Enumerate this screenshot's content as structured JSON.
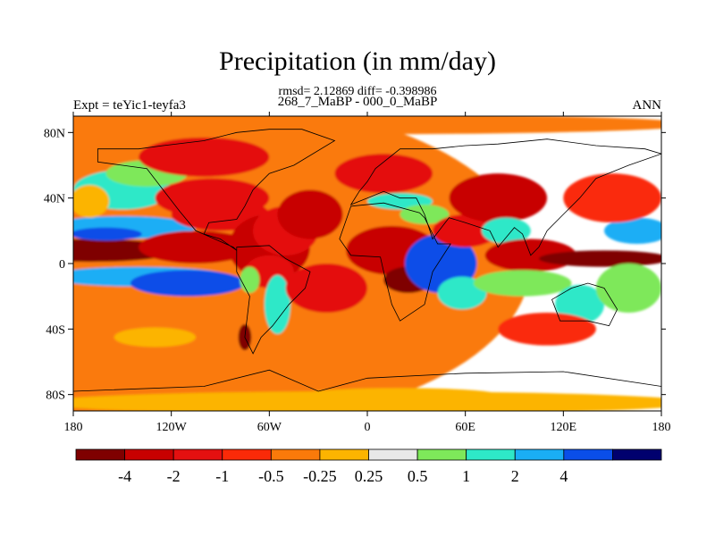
{
  "chart_data": {
    "type": "heatmap",
    "title": "Precipitation (in mm/day)",
    "stats": "rmsd= 2.12869 diff= -0.398986",
    "subtitle": "268_7_MaBP - 000_0_MaBP",
    "left_label": "Expt = teYic1-teyfa3",
    "right_label": "ANN",
    "xlim": [
      -180,
      180
    ],
    "ylim": [
      -90,
      90
    ],
    "x_ticks": [
      {
        "value": -180,
        "label": "180"
      },
      {
        "value": -120,
        "label": "120W"
      },
      {
        "value": -60,
        "label": "60W"
      },
      {
        "value": 0,
        "label": "0"
      },
      {
        "value": 60,
        "label": "60E"
      },
      {
        "value": 120,
        "label": "120E"
      },
      {
        "value": 180,
        "label": "180"
      }
    ],
    "y_ticks": [
      {
        "value": 80,
        "label": "80N"
      },
      {
        "value": 40,
        "label": "40N"
      },
      {
        "value": 0,
        "label": "0"
      },
      {
        "value": -40,
        "label": "40S"
      },
      {
        "value": -80,
        "label": "80S"
      }
    ],
    "levels": [
      {
        "value": -4,
        "label": "-4"
      },
      {
        "value": -2,
        "label": "-2"
      },
      {
        "value": -1,
        "label": "-1"
      },
      {
        "value": -0.5,
        "label": "-0.5"
      },
      {
        "value": -0.25,
        "label": "-0.25"
      },
      {
        "value": 0.25,
        "label": "0.25"
      },
      {
        "value": 0.5,
        "label": "0.5"
      },
      {
        "value": 1,
        "label": "1"
      },
      {
        "value": 2,
        "label": "2"
      },
      {
        "value": 4,
        "label": "4"
      }
    ],
    "colors": [
      "#7f0000",
      "#c80000",
      "#e41010",
      "#fa2a08",
      "#fa7a0a",
      "#fcb400",
      "#e8e8e8",
      "#7ee85a",
      "#2ee8c8",
      "#1aaef5",
      "#0a4ee8",
      "#00006e"
    ],
    "regions": [
      {
        "lon": -100,
        "lat": 0,
        "value": -0.4,
        "rx": 200,
        "ry": 100
      },
      {
        "lon": -170,
        "lat": 8,
        "value": -5,
        "rx": 55,
        "ry": 7
      },
      {
        "lon": -150,
        "lat": 22,
        "value": 2.5,
        "rx": 45,
        "ry": 7
      },
      {
        "lon": -160,
        "lat": 18,
        "value": 4.5,
        "rx": 22,
        "ry": 4
      },
      {
        "lon": -105,
        "lat": 10,
        "value": -2.5,
        "rx": 35,
        "ry": 10
      },
      {
        "lon": -140,
        "lat": -8,
        "value": 2.5,
        "rx": 55,
        "ry": 6
      },
      {
        "lon": -110,
        "lat": -12,
        "value": 5,
        "rx": 35,
        "ry": 8
      },
      {
        "lon": -150,
        "lat": 45,
        "value": 1.2,
        "rx": 30,
        "ry": 12
      },
      {
        "lon": -135,
        "lat": 55,
        "value": 0.7,
        "rx": 25,
        "ry": 8
      },
      {
        "lon": -170,
        "lat": 38,
        "value": 0.1,
        "rx": 12,
        "ry": 10
      },
      {
        "lon": -170,
        "lat": -30,
        "value": -0.3,
        "rx": 25,
        "ry": 12
      },
      {
        "lon": -130,
        "lat": -45,
        "value": 0.1,
        "rx": 25,
        "ry": 6
      },
      {
        "lon": -75,
        "lat": -45,
        "value": -5,
        "rx": 4,
        "ry": 8
      },
      {
        "lon": -95,
        "lat": 40,
        "value": -2,
        "rx": 35,
        "ry": 12
      },
      {
        "lon": -100,
        "lat": 65,
        "value": -1.2,
        "rx": 40,
        "ry": 12
      },
      {
        "lon": -90,
        "lat": 30,
        "value": -1.5,
        "rx": 30,
        "ry": 10
      },
      {
        "lon": -60,
        "lat": 10,
        "value": -3,
        "rx": 25,
        "ry": 20
      },
      {
        "lon": -50,
        "lat": 20,
        "value": -2,
        "rx": 20,
        "ry": 15
      },
      {
        "lon": -60,
        "lat": -5,
        "value": -1.5,
        "rx": 15,
        "ry": 10
      },
      {
        "lon": -55,
        "lat": -25,
        "value": 1.5,
        "rx": 8,
        "ry": 18
      },
      {
        "lon": -72,
        "lat": -10,
        "value": 0.7,
        "rx": 6,
        "ry": 8
      },
      {
        "lon": -35,
        "lat": 30,
        "value": -2.5,
        "rx": 20,
        "ry": 15
      },
      {
        "lon": -25,
        "lat": -15,
        "value": -2,
        "rx": 25,
        "ry": 15
      },
      {
        "lon": 15,
        "lat": 8,
        "value": -3,
        "rx": 28,
        "ry": 15
      },
      {
        "lon": 25,
        "lat": -10,
        "value": -4.5,
        "rx": 15,
        "ry": 8
      },
      {
        "lon": 10,
        "lat": 55,
        "value": -1.2,
        "rx": 30,
        "ry": 12
      },
      {
        "lon": 20,
        "lat": 38,
        "value": 1.2,
        "rx": 20,
        "ry": 5
      },
      {
        "lon": 35,
        "lat": 30,
        "value": 0.7,
        "rx": 15,
        "ry": 6
      },
      {
        "lon": 45,
        "lat": 0,
        "value": 5,
        "rx": 22,
        "ry": 18
      },
      {
        "lon": 58,
        "lat": -18,
        "value": 1.5,
        "rx": 15,
        "ry": 10
      },
      {
        "lon": 60,
        "lat": 20,
        "value": -2,
        "rx": 20,
        "ry": 10
      },
      {
        "lon": 80,
        "lat": 40,
        "value": -2.5,
        "rx": 30,
        "ry": 15
      },
      {
        "lon": 85,
        "lat": 20,
        "value": 1.2,
        "rx": 15,
        "ry": 8
      },
      {
        "lon": 100,
        "lat": 5,
        "value": -3,
        "rx": 28,
        "ry": 10
      },
      {
        "lon": 95,
        "lat": -12,
        "value": 0.7,
        "rx": 30,
        "ry": 8
      },
      {
        "lon": 145,
        "lat": 3,
        "value": -5,
        "rx": 40,
        "ry": 5
      },
      {
        "lon": 165,
        "lat": 20,
        "value": 2.5,
        "rx": 20,
        "ry": 8
      },
      {
        "lon": 150,
        "lat": 40,
        "value": -0.7,
        "rx": 30,
        "ry": 15
      },
      {
        "lon": 130,
        "lat": -25,
        "value": 1.5,
        "rx": 15,
        "ry": 12
      },
      {
        "lon": 160,
        "lat": -15,
        "value": 0.7,
        "rx": 20,
        "ry": 15
      },
      {
        "lon": 110,
        "lat": -40,
        "value": -0.7,
        "rx": 30,
        "ry": 10
      },
      {
        "lon": 0,
        "lat": -85,
        "value": 0.05,
        "rx": 200,
        "ry": 7
      },
      {
        "lon": 20,
        "lat": -80,
        "value": 0.1,
        "rx": 60,
        "ry": 4
      },
      {
        "lon": 0,
        "lat": 85,
        "value": -0.3,
        "rx": 200,
        "ry": 6
      }
    ],
    "land": [
      [
        [
          -165,
          70
        ],
        [
          -140,
          70
        ],
        [
          -125,
          72
        ],
        [
          -100,
          75
        ],
        [
          -80,
          80
        ],
        [
          -60,
          82
        ],
        [
          -40,
          82
        ],
        [
          -20,
          75
        ],
        [
          -45,
          60
        ],
        [
          -60,
          55
        ],
        [
          -70,
          45
        ],
        [
          -75,
          35
        ],
        [
          -80,
          27
        ],
        [
          -97,
          25
        ],
        [
          -100,
          18
        ],
        [
          -90,
          15
        ],
        [
          -80,
          8
        ],
        [
          -82,
          10
        ],
        [
          -105,
          20
        ],
        [
          -115,
          32
        ],
        [
          -125,
          45
        ],
        [
          -135,
          58
        ],
        [
          -150,
          60
        ],
        [
          -165,
          62
        ]
      ],
      [
        [
          -80,
          10
        ],
        [
          -60,
          11
        ],
        [
          -50,
          3
        ],
        [
          -35,
          -5
        ],
        [
          -38,
          -15
        ],
        [
          -48,
          -25
        ],
        [
          -58,
          -38
        ],
        [
          -65,
          -45
        ],
        [
          -70,
          -55
        ],
        [
          -75,
          -45
        ],
        [
          -72,
          -20
        ],
        [
          -80,
          -5
        ]
      ],
      [
        [
          -10,
          35
        ],
        [
          10,
          37
        ],
        [
          32,
          31
        ],
        [
          35,
          28
        ],
        [
          43,
          12
        ],
        [
          51,
          12
        ],
        [
          40,
          -5
        ],
        [
          35,
          -25
        ],
        [
          20,
          -35
        ],
        [
          15,
          -25
        ],
        [
          10,
          -5
        ],
        [
          8,
          4
        ],
        [
          -10,
          5
        ],
        [
          -17,
          15
        ]
      ],
      [
        [
          -10,
          36
        ],
        [
          -5,
          44
        ],
        [
          0,
          50
        ],
        [
          5,
          58
        ],
        [
          20,
          70
        ],
        [
          40,
          70
        ],
        [
          60,
          72
        ],
        [
          80,
          73
        ],
        [
          110,
          76
        ],
        [
          140,
          72
        ],
        [
          170,
          70
        ],
        [
          180,
          67
        ],
        [
          160,
          60
        ],
        [
          140,
          52
        ],
        [
          130,
          40
        ],
        [
          120,
          30
        ],
        [
          110,
          20
        ],
        [
          105,
          10
        ],
        [
          100,
          5
        ],
        [
          95,
          18
        ],
        [
          90,
          22
        ],
        [
          80,
          10
        ],
        [
          75,
          20
        ],
        [
          60,
          25
        ],
        [
          50,
          28
        ],
        [
          40,
          15
        ],
        [
          35,
          30
        ],
        [
          30,
          40
        ],
        [
          20,
          40
        ],
        [
          10,
          44
        ],
        [
          0,
          40
        ]
      ],
      [
        [
          113,
          -22
        ],
        [
          125,
          -15
        ],
        [
          135,
          -12
        ],
        [
          145,
          -15
        ],
        [
          153,
          -28
        ],
        [
          148,
          -38
        ],
        [
          135,
          -35
        ],
        [
          118,
          -35
        ]
      ],
      [
        [
          -180,
          -78
        ],
        [
          -100,
          -75
        ],
        [
          -60,
          -65
        ],
        [
          -30,
          -78
        ],
        [
          0,
          -70
        ],
        [
          60,
          -67
        ],
        [
          120,
          -66
        ],
        [
          180,
          -75
        ],
        [
          180,
          -90
        ],
        [
          -180,
          -90
        ]
      ]
    ]
  }
}
